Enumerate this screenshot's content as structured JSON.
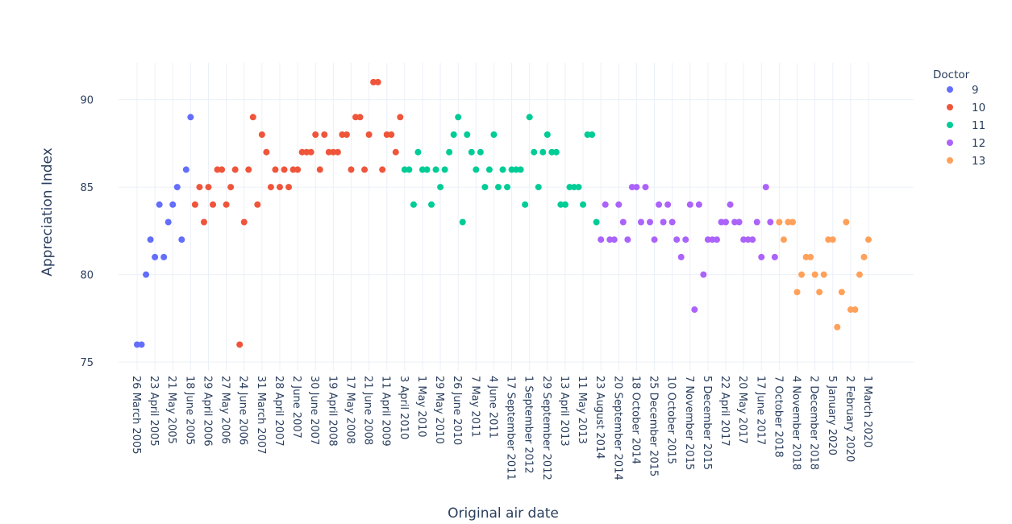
{
  "chart_data": {
    "type": "scatter",
    "title": "",
    "xlabel": "Original air date",
    "ylabel": "Appreciation Index",
    "ylim": [
      74.5,
      92.1
    ],
    "yticks": [
      75,
      80,
      85,
      90
    ],
    "legend": {
      "title": "Doctor",
      "placement": "top-right"
    },
    "x_tick_labels": [
      "26 March 2005",
      "23 April 2005",
      "21 May 2005",
      "18 June 2005",
      "29 April 2006",
      "27 May 2006",
      "24 June 2006",
      "31 March 2007",
      "28 April 2007",
      "2 June 2007",
      "30 June 2007",
      "19 April 2008",
      "17 May 2008",
      "21 June 2008",
      "11 April 2009",
      "3 April 2010",
      "1 May 2010",
      "29 May 2010",
      "26 June 2010",
      "7 May 2011",
      "4 June 2011",
      "17 September 2011",
      "1 September 2012",
      "29 September 2012",
      "13 April 2013",
      "11 May 2013",
      "23 August 2014",
      "20 September 2014",
      "18 October 2014",
      "25 December 2015",
      "10 October 2015",
      "7 November 2015",
      "5 December 2015",
      "22 April 2017",
      "20 May 2017",
      "17 June 2017",
      "7 October 2018",
      "4 November 2018",
      "2 December 2018",
      "5 January 2020",
      "2 February 2020",
      "1 March 2020"
    ],
    "series": [
      {
        "name": "9",
        "color": "#636efa",
        "values": [
          76,
          76,
          80,
          82,
          81,
          84,
          81,
          83,
          84,
          85,
          82,
          86,
          89
        ]
      },
      {
        "name": "10",
        "color": "#ef553b",
        "values": [
          84,
          85,
          83,
          85,
          84,
          86,
          86,
          84,
          85,
          86,
          76,
          83,
          86,
          89,
          84,
          88,
          87,
          85,
          86,
          85,
          86,
          85,
          86,
          86,
          87,
          87,
          87,
          88,
          86,
          88,
          87,
          87,
          87,
          88,
          88,
          86,
          89,
          89,
          86,
          88,
          91,
          91,
          86,
          88,
          88,
          87,
          89
        ]
      },
      {
        "name": "11",
        "color": "#00cc96",
        "values": [
          86,
          86,
          84,
          87,
          86,
          86,
          84,
          86,
          85,
          86,
          87,
          88,
          89,
          83,
          88,
          87,
          86,
          87,
          85,
          86,
          88,
          85,
          86,
          85,
          86,
          86,
          86,
          84,
          89,
          87,
          85,
          87,
          88,
          87,
          87,
          84,
          84,
          85,
          85,
          85,
          84,
          88,
          88,
          83
        ]
      },
      {
        "name": "12",
        "color": "#ab63fa",
        "values": [
          82,
          84,
          82,
          82,
          84,
          83,
          82,
          85,
          85,
          83,
          85,
          83,
          82,
          84,
          83,
          84,
          83,
          82,
          81,
          82,
          84,
          78,
          84,
          80,
          82,
          82,
          82,
          83,
          83,
          84,
          83,
          83,
          82,
          82,
          82,
          83,
          81,
          85,
          83,
          81
        ]
      },
      {
        "name": "13",
        "color": "#FFA15A",
        "values": [
          83,
          82,
          83,
          83,
          79,
          80,
          81,
          81,
          80,
          79,
          80,
          82,
          82,
          77,
          79,
          83,
          78,
          78,
          80,
          81,
          82
        ]
      }
    ]
  }
}
